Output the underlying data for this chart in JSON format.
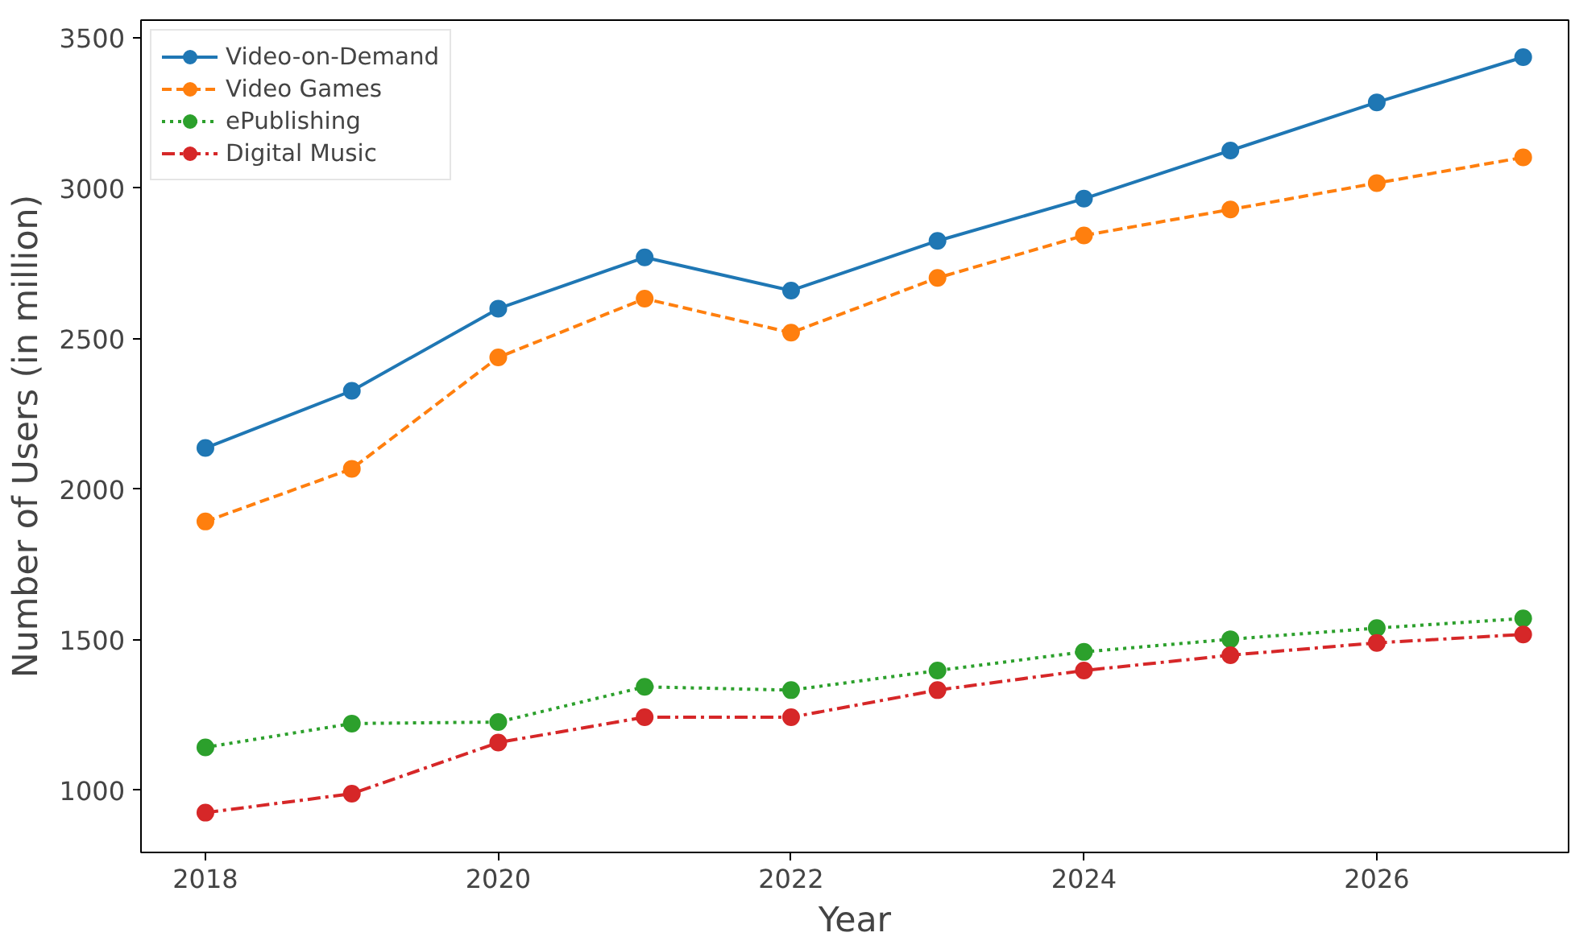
{
  "chart_data": {
    "type": "line",
    "xlabel": "Year",
    "ylabel": "Number of Users (in million)",
    "x": [
      2018,
      2019,
      2020,
      2021,
      2022,
      2023,
      2024,
      2025,
      2026,
      2027
    ],
    "series": [
      {
        "name": "Video-on-Demand",
        "color": "#1f77b4",
        "line_style": "solid",
        "values": [
          2137,
          2327,
          2600,
          2770,
          2660,
          2825,
          2965,
          3125,
          3285,
          3435
        ]
      },
      {
        "name": "Video Games",
        "color": "#ff7f0e",
        "line_style": "dashed",
        "values": [
          1893,
          2068,
          2438,
          2633,
          2520,
          2702,
          2843,
          2929,
          3017,
          3102
        ]
      },
      {
        "name": "ePublishing",
        "color": "#2ca02c",
        "line_style": "dotted",
        "values": [
          1143,
          1222,
          1227,
          1344,
          1333,
          1398,
          1460,
          1502,
          1539,
          1571
        ]
      },
      {
        "name": "Digital Music",
        "color": "#d62728",
        "line_style": "dashdot",
        "values": [
          926,
          989,
          1159,
          1243,
          1243,
          1333,
          1398,
          1449,
          1490,
          1518
        ]
      }
    ],
    "marker": "circle",
    "xlim": [
      2017.56,
      2027.31
    ],
    "ylim": [
      794,
      3558
    ],
    "xticks": [
      2018,
      2020,
      2022,
      2024,
      2026
    ],
    "yticks": [
      1000,
      1500,
      2000,
      2500,
      3000,
      3500
    ],
    "grid": false,
    "legend": "top left"
  }
}
